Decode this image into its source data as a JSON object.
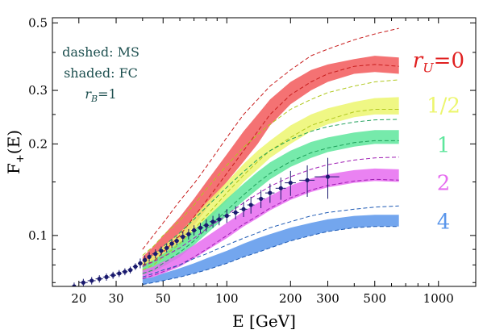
{
  "chart_data": {
    "type": "line",
    "xlabel": "E [GeV]",
    "ylabel": "F+(E)",
    "xscale": "log",
    "yscale": "log",
    "xlim": [
      15,
      1500
    ],
    "ylim": [
      0.068,
      0.52
    ],
    "grid": false,
    "x_ticks": [
      20,
      30,
      50,
      100,
      200,
      300,
      500,
      1000
    ],
    "y_ticks": [
      0.1,
      0.2,
      0.3,
      0.5
    ],
    "y_tick_labels": [
      "0.1",
      "0.2",
      "0.3",
      "0.5"
    ],
    "annotations": {
      "line1": "dashed: MS",
      "line2": "shaded: FC",
      "line3_main": "r",
      "line3_sub": "B",
      "line3_rest": "=1"
    },
    "series_labels_prefix": {
      "main": "r",
      "sub": "U",
      "rest": "=0"
    },
    "bands": [
      {
        "label": "r_U=0",
        "label_text": "0",
        "color": "#f2595a",
        "dash_color": "#c81e1e",
        "x": [
          40,
          45,
          50,
          60,
          70,
          80,
          100,
          120,
          140,
          160,
          200,
          250,
          300,
          400,
          500,
          650
        ],
        "lo": [
          0.078,
          0.08,
          0.085,
          0.095,
          0.108,
          0.122,
          0.15,
          0.175,
          0.2,
          0.23,
          0.27,
          0.3,
          0.32,
          0.34,
          0.345,
          0.34
        ],
        "hi": [
          0.085,
          0.092,
          0.1,
          0.115,
          0.132,
          0.15,
          0.185,
          0.22,
          0.25,
          0.28,
          0.32,
          0.35,
          0.365,
          0.38,
          0.39,
          0.385
        ],
        "dash_hi": [
          0.09,
          0.1,
          0.11,
          0.13,
          0.148,
          0.168,
          0.21,
          0.25,
          0.28,
          0.31,
          0.35,
          0.39,
          0.41,
          0.44,
          0.46,
          0.48
        ],
        "dash_lo": [
          0.08,
          0.082,
          0.088,
          0.1,
          0.115,
          0.13,
          0.16,
          0.19,
          0.22,
          0.25,
          0.29,
          0.32,
          0.34,
          0.36,
          0.365,
          0.36
        ]
      },
      {
        "label": "r_U=1/2",
        "label_text": "1/2",
        "color": "#ecf66e",
        "dash_color": "#b0c81e",
        "x": [
          40,
          45,
          50,
          60,
          70,
          80,
          100,
          120,
          140,
          160,
          200,
          250,
          300,
          400,
          500,
          650
        ],
        "lo": [
          0.076,
          0.078,
          0.082,
          0.09,
          0.1,
          0.11,
          0.13,
          0.15,
          0.165,
          0.18,
          0.2,
          0.22,
          0.232,
          0.245,
          0.25,
          0.25
        ],
        "hi": [
          0.082,
          0.086,
          0.092,
          0.102,
          0.115,
          0.128,
          0.15,
          0.172,
          0.19,
          0.205,
          0.23,
          0.25,
          0.262,
          0.275,
          0.283,
          0.285
        ],
        "dash_hi": [
          0.086,
          0.092,
          0.1,
          0.112,
          0.126,
          0.142,
          0.17,
          0.195,
          0.215,
          0.232,
          0.26,
          0.28,
          0.295,
          0.31,
          0.32,
          0.325
        ],
        "dash_lo": [
          0.077,
          0.08,
          0.085,
          0.094,
          0.105,
          0.116,
          0.138,
          0.158,
          0.175,
          0.19,
          0.21,
          0.23,
          0.24,
          0.255,
          0.26,
          0.26
        ]
      },
      {
        "label": "r_U=1",
        "label_text": "1",
        "color": "#5ee69c",
        "dash_color": "#1ea05a",
        "x": [
          40,
          45,
          50,
          60,
          70,
          80,
          100,
          120,
          140,
          160,
          200,
          250,
          300,
          400,
          500,
          650
        ],
        "lo": [
          0.074,
          0.076,
          0.079,
          0.085,
          0.093,
          0.101,
          0.116,
          0.13,
          0.142,
          0.153,
          0.168,
          0.18,
          0.188,
          0.196,
          0.2,
          0.2
        ],
        "hi": [
          0.08,
          0.083,
          0.087,
          0.095,
          0.104,
          0.114,
          0.132,
          0.148,
          0.162,
          0.174,
          0.19,
          0.203,
          0.21,
          0.218,
          0.222,
          0.222
        ],
        "dash_hi": [
          0.083,
          0.087,
          0.092,
          0.102,
          0.113,
          0.124,
          0.144,
          0.162,
          0.178,
          0.19,
          0.207,
          0.22,
          0.228,
          0.236,
          0.24,
          0.241
        ],
        "dash_lo": [
          0.075,
          0.077,
          0.081,
          0.088,
          0.096,
          0.105,
          0.121,
          0.136,
          0.149,
          0.16,
          0.175,
          0.187,
          0.194,
          0.202,
          0.205,
          0.205
        ]
      },
      {
        "label": "r_U=2",
        "label_text": "2",
        "color": "#e66cf0",
        "dash_color": "#a01eb4",
        "x": [
          40,
          45,
          50,
          60,
          70,
          80,
          100,
          120,
          140,
          160,
          200,
          250,
          300,
          400,
          500,
          650
        ],
        "lo": [
          0.072,
          0.073,
          0.075,
          0.079,
          0.084,
          0.089,
          0.098,
          0.107,
          0.114,
          0.121,
          0.131,
          0.139,
          0.144,
          0.149,
          0.151,
          0.15
        ],
        "hi": [
          0.077,
          0.079,
          0.082,
          0.087,
          0.093,
          0.099,
          0.11,
          0.12,
          0.128,
          0.135,
          0.146,
          0.154,
          0.159,
          0.164,
          0.166,
          0.165
        ],
        "dash_hi": [
          0.079,
          0.082,
          0.085,
          0.091,
          0.098,
          0.105,
          0.117,
          0.128,
          0.137,
          0.145,
          0.156,
          0.165,
          0.171,
          0.177,
          0.18,
          0.181
        ],
        "dash_lo": [
          0.072,
          0.074,
          0.076,
          0.08,
          0.085,
          0.09,
          0.1,
          0.109,
          0.116,
          0.123,
          0.133,
          0.141,
          0.146,
          0.151,
          0.153,
          0.152
        ]
      },
      {
        "label": "r_U=4",
        "label_text": "4",
        "color": "#5a96eb",
        "dash_color": "#1e5ab4",
        "x": [
          40,
          45,
          50,
          60,
          70,
          80,
          100,
          120,
          140,
          160,
          200,
          250,
          300,
          400,
          500,
          650
        ],
        "lo": [
          0.069,
          0.07,
          0.071,
          0.073,
          0.075,
          0.077,
          0.081,
          0.085,
          0.088,
          0.091,
          0.096,
          0.1,
          0.103,
          0.106,
          0.107,
          0.107
        ],
        "hi": [
          0.072,
          0.073,
          0.075,
          0.078,
          0.081,
          0.084,
          0.089,
          0.094,
          0.098,
          0.101,
          0.106,
          0.11,
          0.113,
          0.116,
          0.117,
          0.117
        ],
        "dash_hi": [
          0.073,
          0.075,
          0.077,
          0.08,
          0.084,
          0.087,
          0.093,
          0.098,
          0.102,
          0.106,
          0.111,
          0.116,
          0.119,
          0.122,
          0.124,
          0.125
        ],
        "dash_lo": [
          0.069,
          0.07,
          0.071,
          0.073,
          0.075,
          0.077,
          0.081,
          0.085,
          0.088,
          0.091,
          0.096,
          0.1,
          0.103,
          0.106,
          0.107,
          0.107
        ]
      }
    ],
    "data_points": {
      "color": "#1a1a6e",
      "x": [
        19,
        21,
        23,
        25,
        27,
        29,
        31,
        33,
        35,
        37,
        39,
        41,
        43,
        46,
        49,
        52,
        55,
        58,
        62,
        66,
        70,
        75,
        80,
        86,
        92,
        100,
        110,
        120,
        130,
        145,
        160,
        180,
        200,
        240,
        300
      ],
      "y": [
        0.068,
        0.07,
        0.071,
        0.072,
        0.073,
        0.074,
        0.075,
        0.076,
        0.077,
        0.079,
        0.081,
        0.083,
        0.085,
        0.087,
        0.089,
        0.091,
        0.094,
        0.096,
        0.099,
        0.101,
        0.104,
        0.106,
        0.108,
        0.111,
        0.113,
        0.116,
        0.119,
        0.122,
        0.126,
        0.132,
        0.138,
        0.143,
        0.149,
        0.152,
        0.156
      ],
      "yerr": [
        0.002,
        0.002,
        0.002,
        0.002,
        0.002,
        0.002,
        0.002,
        0.002,
        0.002,
        0.002,
        0.003,
        0.003,
        0.003,
        0.003,
        0.003,
        0.003,
        0.003,
        0.003,
        0.004,
        0.004,
        0.004,
        0.004,
        0.005,
        0.005,
        0.005,
        0.006,
        0.006,
        0.007,
        0.008,
        0.009,
        0.01,
        0.012,
        0.014,
        0.018,
        0.024
      ],
      "xerr": [
        1,
        1,
        1,
        1,
        1,
        1,
        1,
        1,
        1,
        1,
        1,
        1,
        1,
        1.5,
        1.5,
        1.5,
        1.5,
        1.5,
        2,
        2,
        2,
        2.5,
        2.5,
        3,
        3,
        4,
        4,
        5,
        5,
        6,
        8,
        10,
        12,
        20,
        40
      ]
    }
  }
}
